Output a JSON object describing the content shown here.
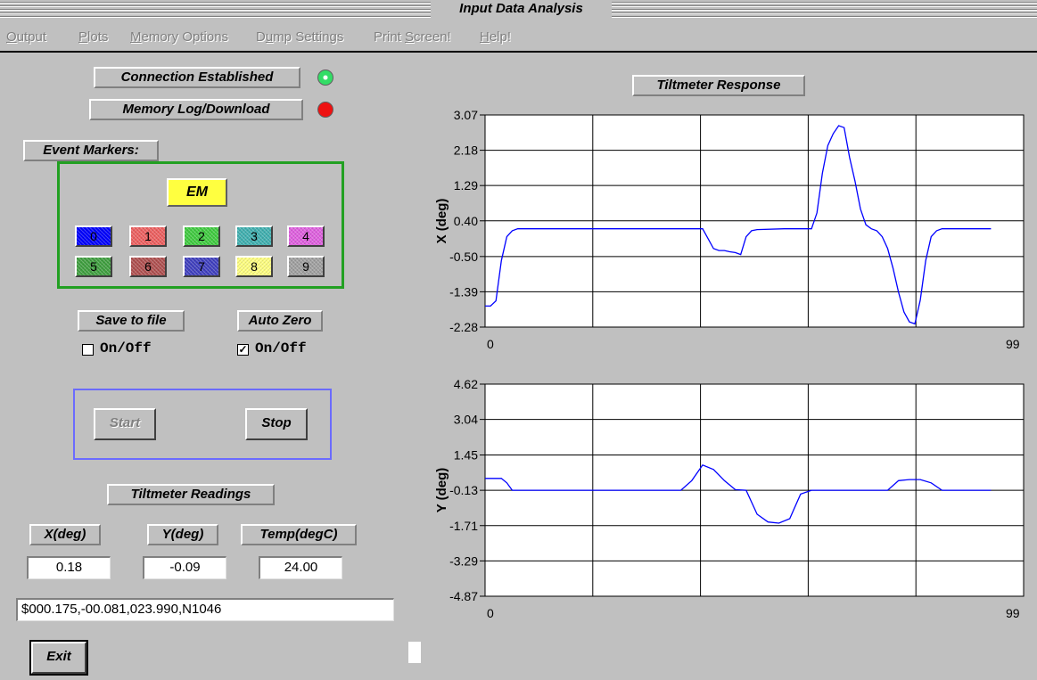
{
  "window": {
    "title": "Input Data Analysis"
  },
  "menu": {
    "items": [
      {
        "label": "Output",
        "accel": "O"
      },
      {
        "label": "Plots",
        "accel": "P"
      },
      {
        "label": "Memory Options",
        "accel": "M"
      },
      {
        "label": "Dump Settings",
        "accel": "u"
      },
      {
        "label": "Print Screen!",
        "accel": "S"
      },
      {
        "label": "Help!",
        "accel": "H"
      }
    ]
  },
  "status": {
    "connection_label": "Connection Established",
    "connection_led_color": "#33dd66",
    "memory_label": "Memory Log/Download",
    "memory_led_color": "#ee1111"
  },
  "event_markers": {
    "heading": "Event Markers:",
    "em_label": "EM",
    "markers": [
      {
        "label": "0",
        "color": "#0000ff"
      },
      {
        "label": "1",
        "color": "#ee6060"
      },
      {
        "label": "2",
        "color": "#40cc40"
      },
      {
        "label": "3",
        "color": "#40b0b0"
      },
      {
        "label": "4",
        "color": "#e060e0"
      },
      {
        "label": "5",
        "color": "#40a040"
      },
      {
        "label": "6",
        "color": "#b05050"
      },
      {
        "label": "7",
        "color": "#4040c0"
      },
      {
        "label": "8",
        "color": "#ffff80"
      },
      {
        "label": "9",
        "color": "#a0a0a0"
      }
    ]
  },
  "options": {
    "save_to_file_label": "Save to file",
    "save_to_file_checkbox": "On/Off",
    "save_to_file_checked": false,
    "auto_zero_label": "Auto Zero",
    "auto_zero_checkbox": "On/Off",
    "auto_zero_checked": true
  },
  "controls": {
    "start_label": "Start",
    "stop_label": "Stop",
    "exit_label": "Exit"
  },
  "readings": {
    "heading": "Tiltmeter Readings",
    "x_label": "X(deg)",
    "y_label": "Y(deg)",
    "temp_label": "Temp(degC)",
    "x_value": "0.18",
    "y_value": "-0.09",
    "temp_value": "24.00",
    "raw_string": "$000.175,-00.081,023.990,N1046"
  },
  "chart_title": "Tiltmeter Response",
  "chart_data": [
    {
      "type": "line",
      "ylabel": "X (deg)",
      "xlabel": "",
      "xlim": [
        0,
        99
      ],
      "x_ticks": [
        "0",
        "99"
      ],
      "ylim": [
        -2.28,
        3.07
      ],
      "y_ticks": [
        "3.07",
        "2.18",
        "1.29",
        "0.40",
        "-0.50",
        "-1.39",
        "-2.28"
      ],
      "grid": true,
      "color": "#0000ff",
      "series": [
        {
          "x": [
            0,
            1,
            2,
            3,
            4,
            5,
            6,
            7,
            8,
            10,
            20,
            30,
            40,
            42,
            43,
            44,
            45,
            46,
            47,
            48,
            49,
            50,
            55,
            60,
            61,
            62,
            63,
            64,
            65,
            66,
            67,
            68,
            69,
            70,
            71,
            72,
            73,
            74,
            75,
            76,
            77,
            78,
            79,
            80,
            81,
            82,
            83,
            84,
            85,
            86,
            87,
            88,
            89,
            90,
            93
          ],
          "y": [
            -1.75,
            -1.75,
            -1.62,
            -0.6,
            0.0,
            0.15,
            0.2,
            0.2,
            0.2,
            0.2,
            0.2,
            0.2,
            0.2,
            -0.3,
            -0.35,
            -0.35,
            -0.38,
            -0.4,
            -0.45,
            0.0,
            0.15,
            0.18,
            0.2,
            0.2,
            0.6,
            1.6,
            2.3,
            2.6,
            2.8,
            2.75,
            2.0,
            1.4,
            0.7,
            0.3,
            0.2,
            0.15,
            0.0,
            -0.3,
            -0.8,
            -1.4,
            -1.9,
            -2.15,
            -2.2,
            -1.6,
            -0.6,
            0.0,
            0.15,
            0.2,
            0.2,
            0.2,
            0.2,
            0.2,
            0.2,
            0.2,
            0.2
          ]
        }
      ]
    },
    {
      "type": "line",
      "ylabel": "Y (deg)",
      "xlabel": "",
      "xlim": [
        0,
        99
      ],
      "x_ticks": [
        "0",
        "99"
      ],
      "ylim": [
        -4.87,
        4.62
      ],
      "y_ticks": [
        "4.62",
        "3.04",
        "1.45",
        "-0.13",
        "-1.71",
        "-3.29",
        "-4.87"
      ],
      "grid": true,
      "color": "#0000ff",
      "series": [
        {
          "x": [
            0,
            1,
            2,
            3,
            4,
            5,
            6,
            7,
            8,
            10,
            20,
            30,
            36,
            38,
            40,
            42,
            44,
            46,
            48,
            50,
            52,
            54,
            56,
            58,
            60,
            62,
            64,
            66,
            68,
            70,
            72,
            74,
            76,
            78,
            80,
            82,
            84,
            86,
            90,
            93
          ],
          "y": [
            0.4,
            0.4,
            0.4,
            0.4,
            0.2,
            -0.13,
            -0.13,
            -0.13,
            -0.13,
            -0.13,
            -0.13,
            -0.13,
            -0.13,
            0.3,
            1.0,
            0.8,
            0.3,
            -0.1,
            -0.13,
            -1.2,
            -1.55,
            -1.6,
            -1.4,
            -0.3,
            -0.13,
            -0.13,
            -0.13,
            -0.13,
            -0.13,
            -0.13,
            -0.13,
            -0.13,
            0.3,
            0.35,
            0.35,
            0.2,
            -0.13,
            -0.13,
            -0.13,
            -0.13
          ]
        }
      ]
    }
  ]
}
